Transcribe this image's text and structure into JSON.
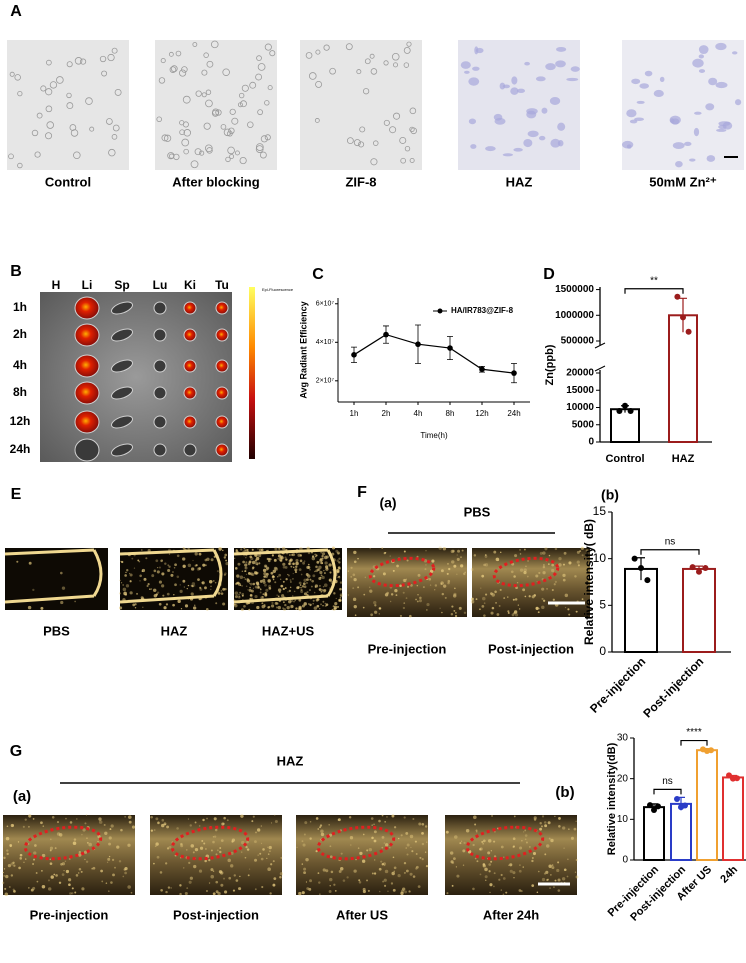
{
  "panels": {
    "A": {
      "letter": "A",
      "labels": [
        "Control",
        "After blocking",
        "ZIF-8",
        "HAZ",
        "50mM Zn²⁺"
      ]
    },
    "B": {
      "letter": "B",
      "columns": [
        "H",
        "Li",
        "Sp",
        "Lu",
        "Ki",
        "Tu"
      ],
      "rows": [
        "1h",
        "2h",
        "4h",
        "8h",
        "12h",
        "24h"
      ],
      "colorbar_label": "Epi-Fluorescence"
    },
    "E": {
      "letter": "E",
      "labels": [
        "PBS",
        "HAZ",
        "HAZ+US"
      ]
    },
    "F": {
      "letter": "F",
      "part_a": "(a)",
      "part_b": "(b)",
      "group": "PBS",
      "labels": [
        "Pre-injection",
        "Post-injection"
      ]
    },
    "G": {
      "letter": "G",
      "part_a": "(a)",
      "part_b": "(b)",
      "group": "HAZ",
      "labels": [
        "Pre-injection",
        "Post-injection",
        "After US",
        "After 24h"
      ]
    }
  },
  "chart_data": [
    {
      "type": "line",
      "letter": "C",
      "categories": [
        "1h",
        "2h",
        "4h",
        "8h",
        "12h",
        "24h"
      ],
      "series": [
        {
          "name": "HA/IR783@ZIF-8",
          "color": "#000000",
          "values": [
            33500000,
            44000000,
            39000000,
            37000000,
            26000000,
            24000000
          ],
          "errors": [
            4000000,
            4500000,
            10000000,
            6000000,
            1500000,
            5000000
          ]
        }
      ],
      "ylim": [
        9000000,
        63000000
      ],
      "yticks": [
        {
          "value": 20000000,
          "label": "2×10⁷"
        },
        {
          "value": 40000000,
          "label": "4×10⁷"
        },
        {
          "value": 60000000,
          "label": "6×10⁷"
        }
      ],
      "x_label": "Time(h)",
      "y_label": "Avg Radiant Efficiency"
    },
    {
      "type": "broken_bar",
      "letter": "D",
      "categories": [
        "Control",
        "HAZ"
      ],
      "values": [
        9500,
        1000000
      ],
      "errors": [
        1000,
        330000
      ],
      "points": [
        [
          9000,
          10500,
          9000
        ],
        [
          1360000,
          960000,
          680000
        ]
      ],
      "colors": [
        "#000000",
        "#9b1c1c"
      ],
      "ylim_lower": [
        0,
        20000
      ],
      "ylim_upper": [
        500000,
        1550000
      ],
      "yticks_lower": [
        0,
        5000,
        10000,
        15000,
        20000
      ],
      "yticks_upper": [
        500000,
        1000000,
        1500000
      ],
      "significance": [
        {
          "pair": [
            "Control",
            "HAZ"
          ],
          "label": "**"
        }
      ],
      "y_label": "Zn(ppb)"
    },
    {
      "type": "bar",
      "categories": [
        "Pre-injection",
        "Post-injection"
      ],
      "values": [
        8.9,
        8.9
      ],
      "errors": [
        1.2,
        0.3
      ],
      "points": [
        [
          10,
          9,
          7.7
        ],
        [
          9.1,
          8.6,
          9.0
        ]
      ],
      "colors": [
        "#000000",
        "#9b1c1c"
      ],
      "ylim": [
        0,
        15
      ],
      "yticks": [
        0,
        5,
        10,
        15
      ],
      "significance": [
        {
          "pair": [
            "Pre-injection",
            "Post-injection"
          ],
          "label": "ns"
        }
      ],
      "y_label": "Relative intensity( dB)"
    },
    {
      "type": "bar",
      "categories": [
        "Pre-injection",
        "Post-injection",
        "After US",
        "24h"
      ],
      "values": [
        13,
        13.8,
        27,
        20.3
      ],
      "errors": [
        0.8,
        1.6,
        0.4,
        0.5
      ],
      "points": [
        [
          13.5,
          12.3,
          13.2
        ],
        [
          15,
          13,
          13.4
        ],
        [
          27.2,
          26.8,
          27
        ],
        [
          20.8,
          20,
          20.1
        ]
      ],
      "colors": [
        "#000000",
        "#2a3cc7",
        "#f0a030",
        "#e03030"
      ],
      "ylim": [
        0,
        30
      ],
      "yticks": [
        0,
        10,
        20,
        30
      ],
      "significance": [
        {
          "pair": [
            "Pre-injection",
            "Post-injection"
          ],
          "label": "ns"
        },
        {
          "pair": [
            "Post-injection",
            "After US"
          ],
          "label": "****"
        }
      ],
      "y_label": "Relative intensity(dB)"
    }
  ]
}
